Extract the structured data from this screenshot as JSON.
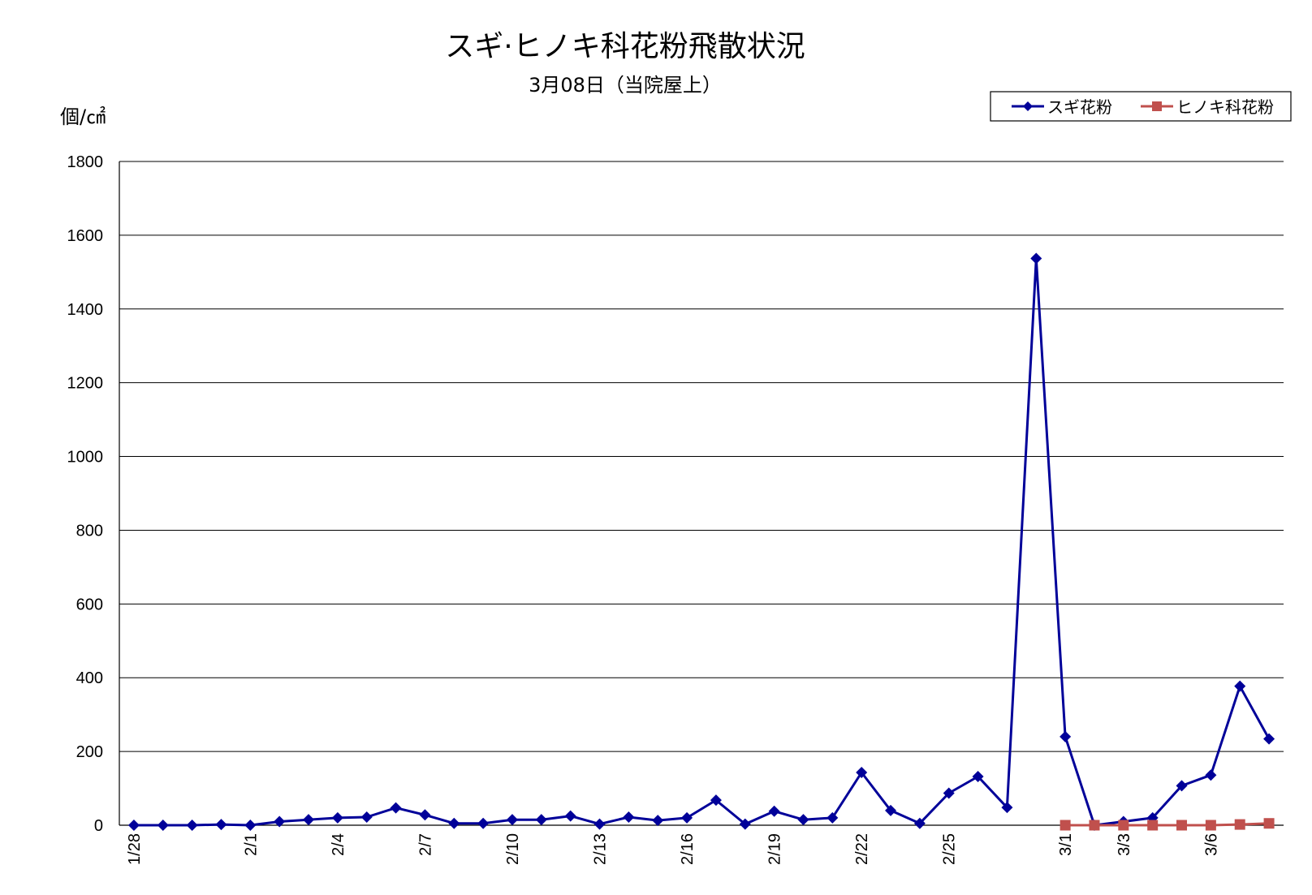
{
  "chart_data": {
    "type": "line",
    "title": "スギ·ヒノキ科花粉飛散状況",
    "subtitle": "3月08日（当院屋上）",
    "ylabel": "個/㎠",
    "ylim": [
      0,
      1800
    ],
    "yticks": [
      "0",
      "200",
      "400",
      "600",
      "800",
      "1000",
      "1200",
      "1400",
      "1600",
      "1800"
    ],
    "grid": true,
    "legend_position": "top-right",
    "x": [
      "1/28",
      "1/29",
      "1/30",
      "1/31",
      "2/1",
      "2/2",
      "2/3",
      "2/4",
      "2/5",
      "2/6",
      "2/7",
      "2/8",
      "2/9",
      "2/10",
      "2/11",
      "2/12",
      "2/13",
      "2/14",
      "2/15",
      "2/16",
      "2/17",
      "2/18",
      "2/19",
      "2/20",
      "2/21",
      "2/22",
      "2/23",
      "2/24",
      "2/25",
      "2/26",
      "2/27",
      "2/28",
      "3/1",
      "3/2",
      "3/3",
      "3/4",
      "3/5",
      "3/6",
      "3/7",
      "3/8"
    ],
    "xtick_labels": [
      "1/28",
      "2/1",
      "2/4",
      "2/7",
      "2/10",
      "2/13",
      "2/16",
      "2/19",
      "2/22",
      "2/25",
      "3/1",
      "3/3",
      "3/6"
    ],
    "series": [
      {
        "name": "スギ花粉",
        "color": "#000099",
        "marker": "diamond",
        "values": [
          0,
          0,
          0,
          2,
          0,
          10,
          15,
          20,
          22,
          47,
          28,
          5,
          5,
          15,
          15,
          25,
          3,
          22,
          13,
          20,
          68,
          3,
          38,
          15,
          20,
          143,
          40,
          5,
          87,
          132,
          48,
          1537,
          240,
          0,
          10,
          20,
          107,
          136,
          377,
          234
        ]
      },
      {
        "name": "ヒノキ科花粉",
        "color": "#C0504D",
        "marker": "square",
        "values": [
          null,
          null,
          null,
          null,
          null,
          null,
          null,
          null,
          null,
          null,
          null,
          null,
          null,
          null,
          null,
          null,
          null,
          null,
          null,
          null,
          null,
          null,
          null,
          null,
          null,
          null,
          null,
          null,
          null,
          null,
          null,
          null,
          0,
          0,
          0,
          0,
          0,
          0,
          2,
          5
        ]
      }
    ]
  }
}
